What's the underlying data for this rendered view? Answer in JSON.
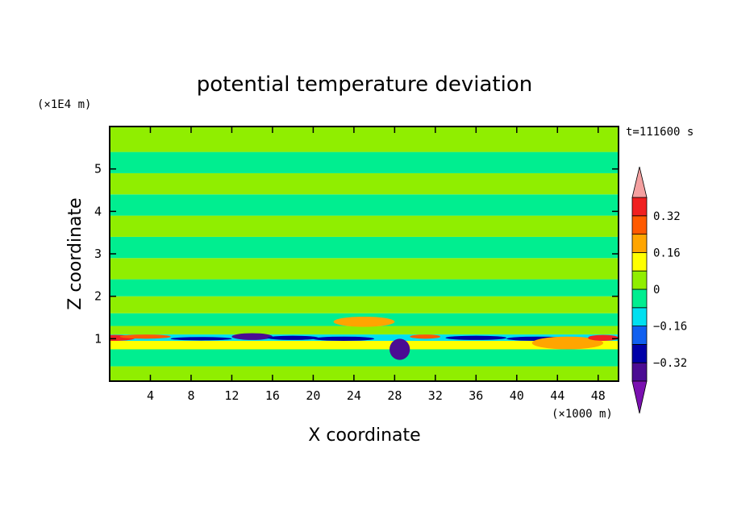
{
  "chart_data": {
    "type": "heatmap",
    "title": "potential temperature deviation",
    "time_label": "t=111600 s",
    "xlabel": "X coordinate",
    "ylabel": "Z coordinate",
    "x_unit": "(×1000 m)",
    "y_unit": "(×1E4 m)",
    "xlim": [
      0,
      50
    ],
    "ylim": [
      0,
      6
    ],
    "x_ticks": [
      4,
      8,
      12,
      16,
      20,
      24,
      28,
      32,
      36,
      40,
      44,
      48
    ],
    "y_ticks": [
      1,
      2,
      3,
      4,
      5
    ],
    "colorbar": {
      "levels": [
        -0.4,
        -0.32,
        -0.24,
        -0.16,
        -0.08,
        0,
        0.08,
        0.16,
        0.24,
        0.32,
        0.4
      ],
      "labels": [
        "0.32",
        "0.16",
        "0",
        "−0.16",
        "−0.32"
      ],
      "label_values": [
        0.32,
        0.16,
        0,
        -0.16,
        -0.32
      ],
      "colors": [
        "#7a10b0",
        "#4b0c93",
        "#0000a8",
        "#1060f0",
        "#00e0f0",
        "#00ee90",
        "#90ee00",
        "#ffff00",
        "#ffa500",
        "#ff5a00",
        "#f02020",
        "#f4a0a0"
      ],
      "extend": "both"
    },
    "bands": [
      {
        "z": [
          0.0,
          0.35
        ],
        "value": 0.05
      },
      {
        "z": [
          0.35,
          0.75
        ],
        "value": -0.03
      },
      {
        "z": [
          0.75,
          0.95
        ],
        "value": 0.08
      },
      {
        "z": [
          0.95,
          1.1
        ],
        "value": -0.12
      },
      {
        "z": [
          1.1,
          1.3
        ],
        "value": 0.04
      },
      {
        "z": [
          1.3,
          1.6
        ],
        "value": -0.05
      },
      {
        "z": [
          1.6,
          2.0
        ],
        "value": 0.03
      },
      {
        "z": [
          2.0,
          2.4
        ],
        "value": -0.02
      },
      {
        "z": [
          2.4,
          2.9
        ],
        "value": 0.02
      },
      {
        "z": [
          2.9,
          3.4
        ],
        "value": -0.02
      },
      {
        "z": [
          3.4,
          3.9
        ],
        "value": 0.03
      },
      {
        "z": [
          3.9,
          4.4
        ],
        "value": -0.02
      },
      {
        "z": [
          4.4,
          4.9
        ],
        "value": 0.02
      },
      {
        "z": [
          4.9,
          5.4
        ],
        "value": -0.02
      },
      {
        "z": [
          5.4,
          6.0
        ],
        "value": 0.03
      }
    ],
    "features": [
      {
        "x": 0.5,
        "z": 1.02,
        "rx": 2.0,
        "rz": 0.07,
        "value": 0.36
      },
      {
        "x": 3.5,
        "z": 1.05,
        "rx": 2.5,
        "rz": 0.05,
        "value": 0.24
      },
      {
        "x": 9.0,
        "z": 1.0,
        "rx": 3.0,
        "rz": 0.04,
        "value": -0.32
      },
      {
        "x": 14.0,
        "z": 1.05,
        "rx": 2.0,
        "rz": 0.08,
        "value": -0.34
      },
      {
        "x": 18.0,
        "z": 1.02,
        "rx": 2.5,
        "rz": 0.05,
        "value": -0.3
      },
      {
        "x": 23.0,
        "z": 1.0,
        "rx": 3.0,
        "rz": 0.05,
        "value": -0.3
      },
      {
        "x": 25.0,
        "z": 1.4,
        "rx": 3.0,
        "rz": 0.12,
        "value": 0.18
      },
      {
        "x": 28.5,
        "z": 0.75,
        "rx": 1.0,
        "rz": 0.25,
        "value": -0.36
      },
      {
        "x": 31.0,
        "z": 1.05,
        "rx": 1.5,
        "rz": 0.05,
        "value": 0.28
      },
      {
        "x": 36.0,
        "z": 1.02,
        "rx": 3.0,
        "rz": 0.05,
        "value": -0.3
      },
      {
        "x": 42.0,
        "z": 1.0,
        "rx": 3.0,
        "rz": 0.05,
        "value": -0.26
      },
      {
        "x": 45.0,
        "z": 0.9,
        "rx": 3.5,
        "rz": 0.15,
        "value": 0.16
      },
      {
        "x": 48.5,
        "z": 1.02,
        "rx": 1.5,
        "rz": 0.07,
        "value": 0.34
      }
    ]
  }
}
